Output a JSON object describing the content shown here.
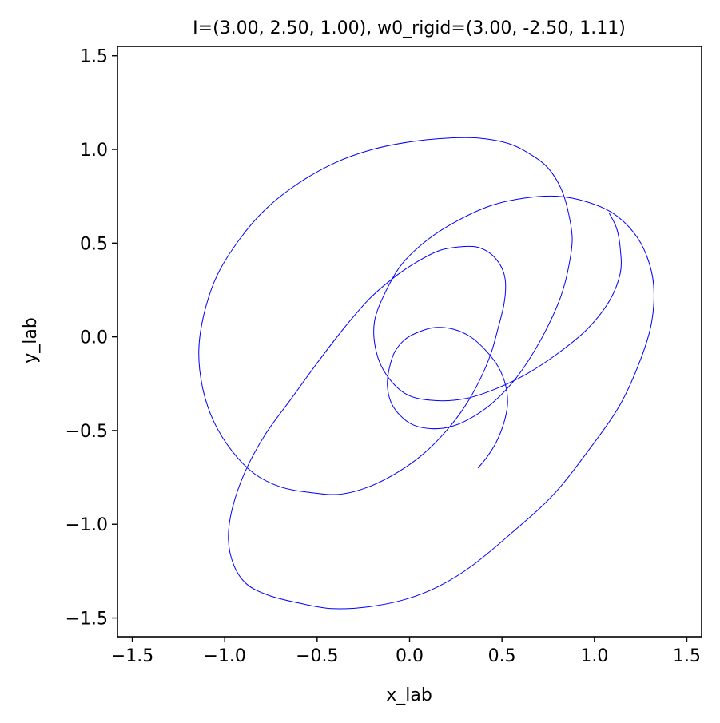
{
  "chart_data": {
    "type": "line",
    "title": "I=(3.00, 2.50, 1.00), w0_rigid=(3.00, -2.50, 1.11)",
    "xlabel": "x_lab",
    "ylabel": "y_lab",
    "xlim": [
      -1.58,
      1.58
    ],
    "ylim": [
      -1.6,
      1.55
    ],
    "xticks": [
      -1.5,
      -1.0,
      -0.5,
      0.0,
      0.5,
      1.0,
      1.5
    ],
    "xtick_labels": [
      "−1.5",
      "−1.0",
      "−0.5",
      "0.0",
      "0.5",
      "1.0",
      "1.5"
    ],
    "yticks": [
      -1.5,
      -1.0,
      -0.5,
      0.0,
      0.5,
      1.0,
      1.5
    ],
    "ytick_labels": [
      "−1.5",
      "−1.0",
      "−0.5",
      "0.0",
      "0.5",
      "1.0",
      "1.5"
    ],
    "grid": false,
    "series": [
      {
        "color": "#0000ff",
        "x": [
          0.37,
          0.42,
          0.47,
          0.51,
          0.53,
          0.52,
          0.48,
          0.41,
          0.33,
          0.24,
          0.14,
          0.06,
          -0.02,
          -0.08,
          -0.11,
          -0.12,
          -0.1,
          -0.05,
          0.02,
          0.12,
          0.22,
          0.32,
          0.44,
          0.56,
          0.66,
          0.75,
          0.82,
          0.86,
          0.88,
          0.86,
          0.82,
          0.75,
          0.66,
          0.54,
          0.38,
          0.2,
          0.0,
          -0.2,
          -0.4,
          -0.6,
          -0.78,
          -0.92,
          -1.04,
          -1.11,
          -1.14,
          -1.12,
          -1.06,
          -0.96,
          -0.84,
          -0.7,
          -0.54,
          -0.38,
          -0.22,
          -0.06,
          0.08,
          0.2,
          0.3,
          0.38,
          0.44,
          0.48,
          0.51,
          0.52,
          0.51,
          0.48,
          0.43,
          0.36,
          0.27,
          0.16,
          0.04,
          -0.08,
          -0.22,
          -0.36,
          -0.5,
          -0.64,
          -0.78,
          -0.89,
          -0.96,
          -0.98,
          -0.95,
          -0.88,
          -0.76,
          -0.6,
          -0.42,
          -0.22,
          -0.02,
          0.16,
          0.34,
          0.56,
          0.78,
          0.98,
          1.14,
          1.25,
          1.31,
          1.32,
          1.28,
          1.21,
          1.1,
          0.96,
          0.8,
          0.62,
          0.44,
          0.26,
          0.1,
          -0.04,
          -0.13,
          -0.19,
          -0.18,
          -0.12,
          -0.01,
          0.14,
          0.3,
          0.46,
          0.63,
          0.8,
          0.96,
          1.08,
          1.14,
          1.14,
          1.12,
          1.08
        ],
        "y": [
          -0.7,
          -0.64,
          -0.56,
          -0.46,
          -0.36,
          -0.26,
          -0.16,
          -0.07,
          0.0,
          0.04,
          0.05,
          0.03,
          -0.01,
          -0.08,
          -0.17,
          -0.26,
          -0.35,
          -0.42,
          -0.47,
          -0.49,
          -0.48,
          -0.44,
          -0.36,
          -0.24,
          -0.1,
          0.06,
          0.22,
          0.37,
          0.52,
          0.66,
          0.79,
          0.9,
          0.97,
          1.03,
          1.06,
          1.06,
          1.04,
          1.0,
          0.93,
          0.82,
          0.68,
          0.52,
          0.33,
          0.13,
          -0.07,
          -0.27,
          -0.45,
          -0.61,
          -0.73,
          -0.8,
          -0.83,
          -0.84,
          -0.8,
          -0.72,
          -0.62,
          -0.5,
          -0.37,
          -0.23,
          -0.09,
          0.05,
          0.17,
          0.27,
          0.34,
          0.4,
          0.45,
          0.48,
          0.48,
          0.46,
          0.4,
          0.32,
          0.2,
          0.04,
          -0.14,
          -0.33,
          -0.52,
          -0.72,
          -0.92,
          -1.08,
          -1.22,
          -1.32,
          -1.38,
          -1.42,
          -1.45,
          -1.44,
          -1.4,
          -1.33,
          -1.22,
          -1.04,
          -0.84,
          -0.59,
          -0.36,
          -0.12,
          0.08,
          0.28,
          0.44,
          0.56,
          0.66,
          0.72,
          0.75,
          0.74,
          0.7,
          0.62,
          0.52,
          0.39,
          0.24,
          0.08,
          -0.08,
          -0.21,
          -0.31,
          -0.34,
          -0.33,
          -0.28,
          -0.2,
          -0.09,
          0.04,
          0.19,
          0.34,
          0.47,
          0.58,
          0.66
        ]
      }
    ]
  }
}
